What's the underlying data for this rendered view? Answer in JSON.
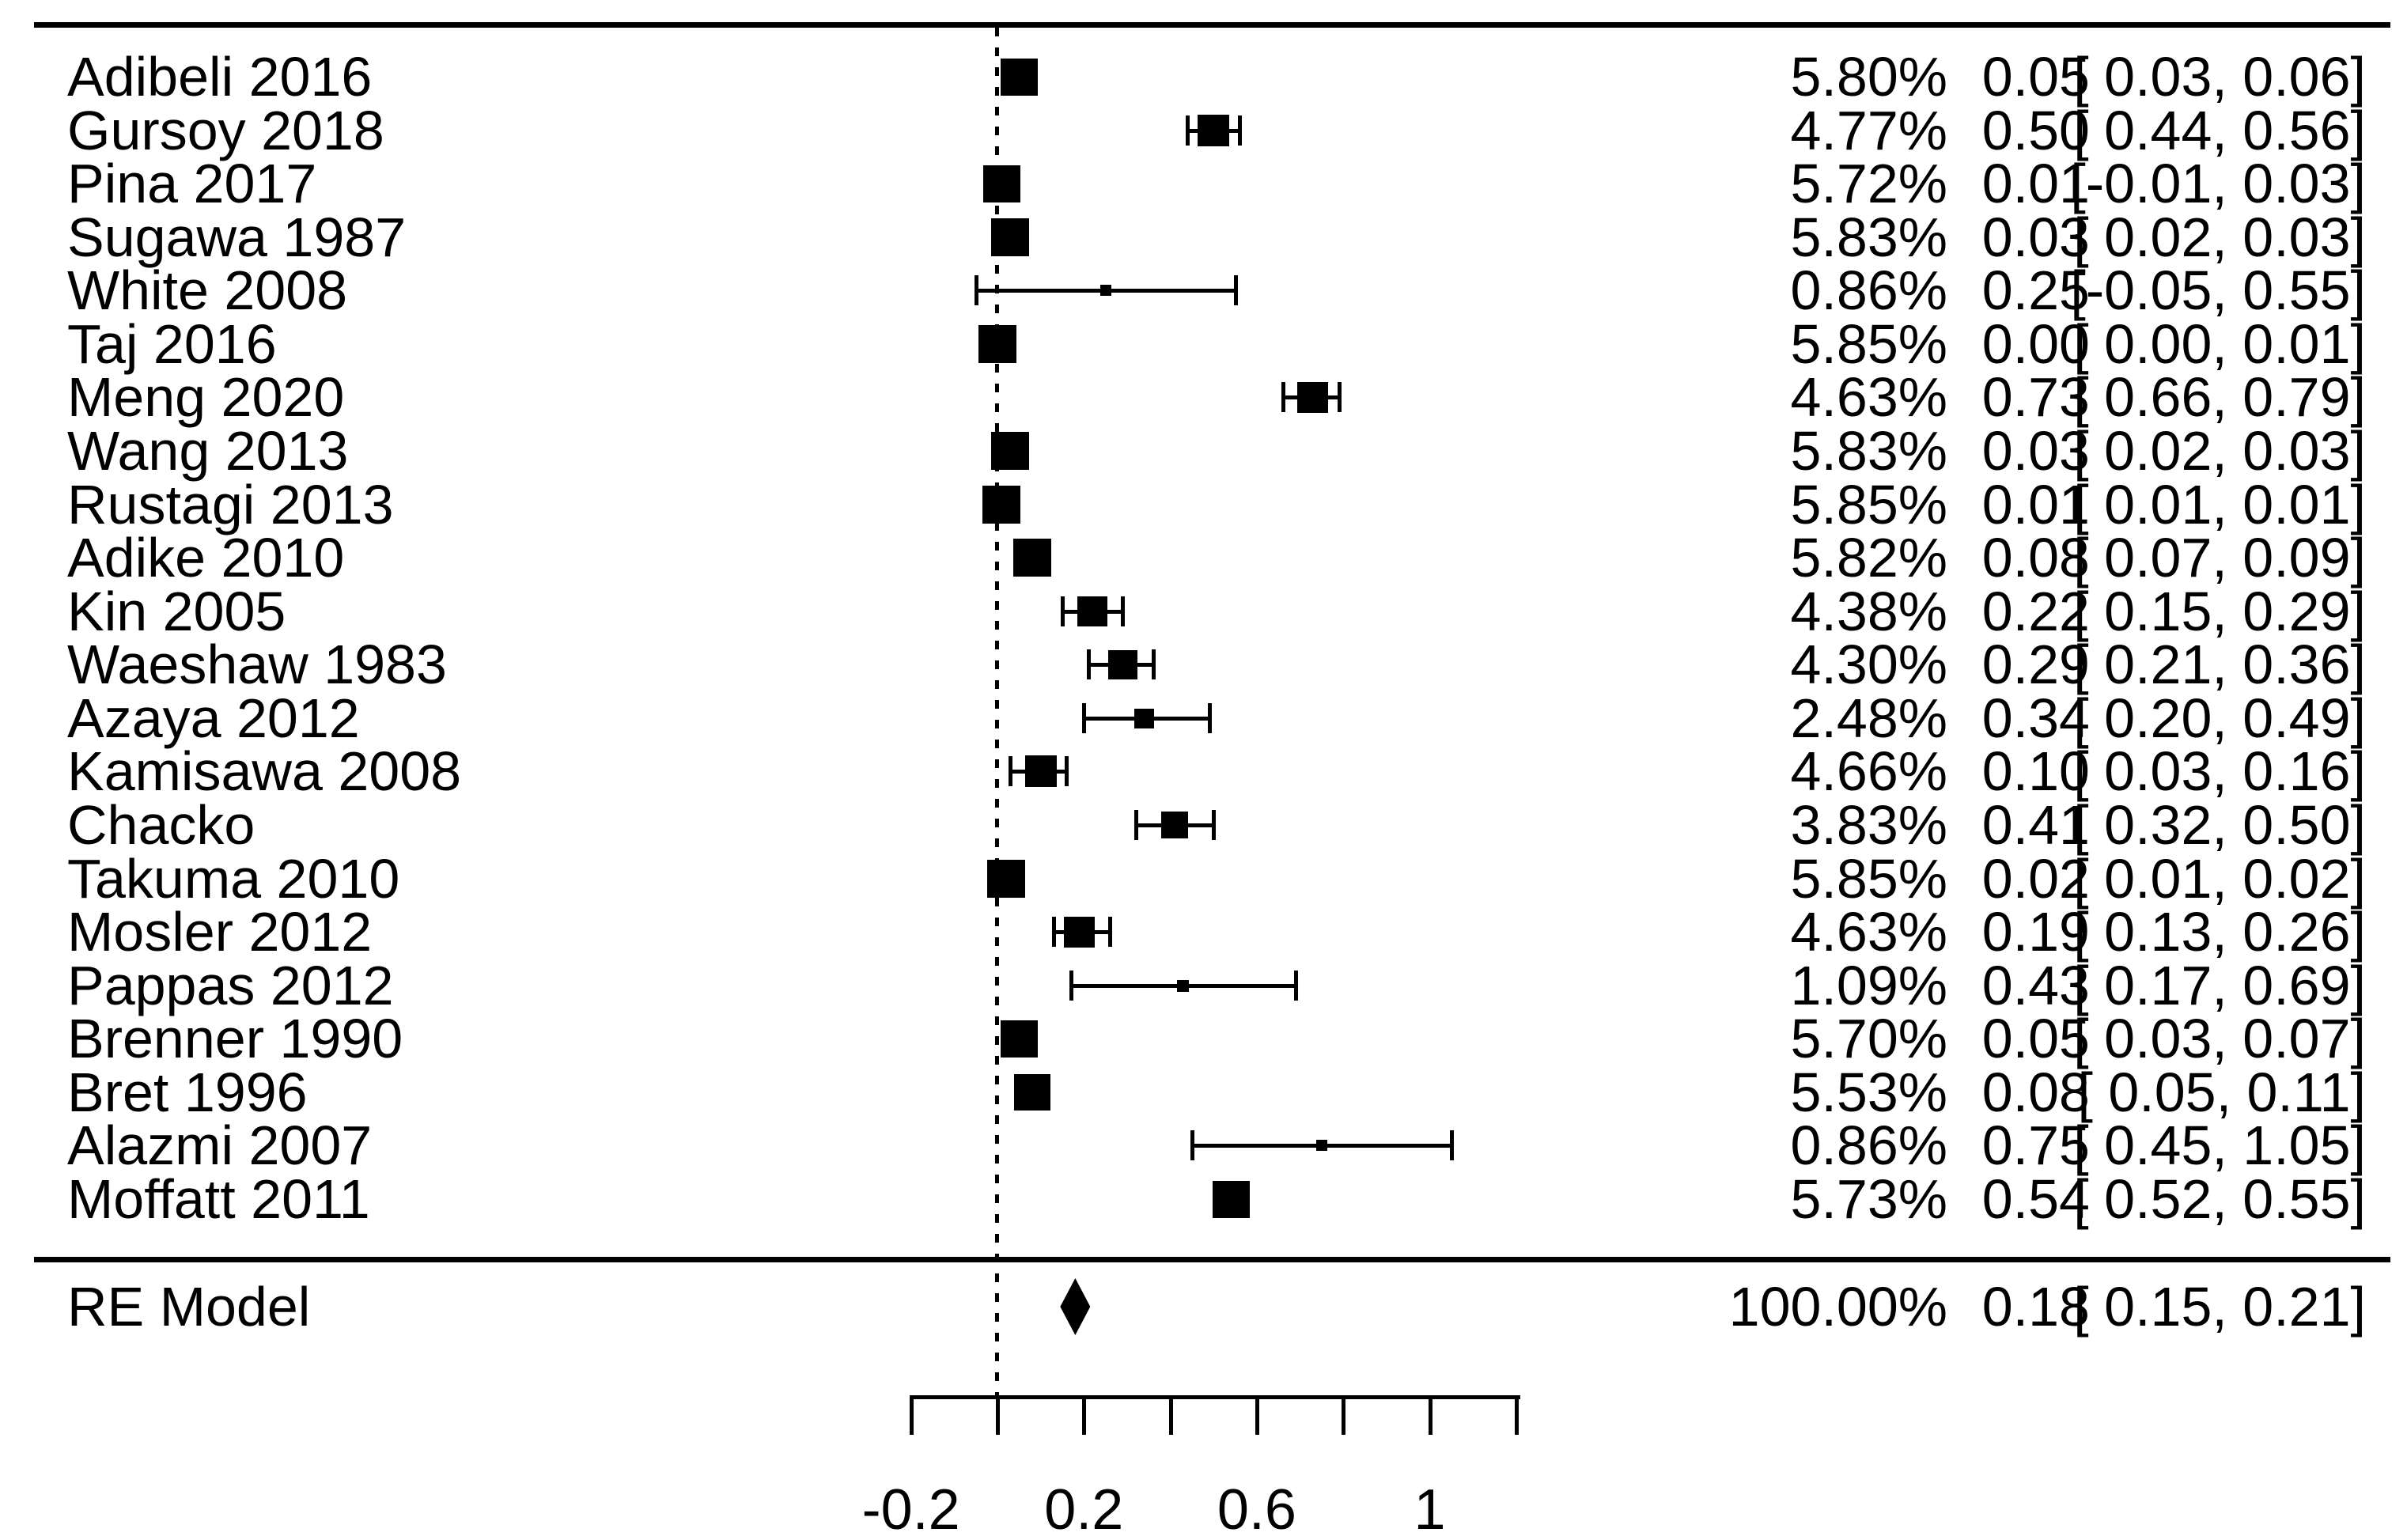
{
  "chart_data": {
    "type": "forest",
    "title": "",
    "x_axis": {
      "range": [
        -0.2,
        1.2
      ],
      "tick_values": [
        -0.2,
        0,
        0.2,
        0.4,
        0.6,
        0.8,
        1.0,
        1.2
      ],
      "labeled_ticks": [
        {
          "value": -0.2,
          "label": "-0.2"
        },
        {
          "value": 0.2,
          "label": "0.2"
        },
        {
          "value": 0.6,
          "label": "0.6"
        },
        {
          "value": 1,
          "label": "1"
        }
      ],
      "reference_line": 0
    },
    "studies": [
      {
        "label": "Adibeli 2016",
        "weight": 5.8,
        "weight_text": "5.80%",
        "estimate": 0.05,
        "estimate_text": "0.05",
        "ci_lo": 0.03,
        "ci_hi": 0.06,
        "ci_text": "[ 0.03, 0.06]"
      },
      {
        "label": "Gursoy 2018",
        "weight": 4.77,
        "weight_text": "4.77%",
        "estimate": 0.5,
        "estimate_text": "0.50",
        "ci_lo": 0.44,
        "ci_hi": 0.56,
        "ci_text": "[ 0.44, 0.56]"
      },
      {
        "label": "Pina 2017",
        "weight": 5.72,
        "weight_text": "5.72%",
        "estimate": 0.01,
        "estimate_text": "0.01",
        "ci_lo": -0.01,
        "ci_hi": 0.03,
        "ci_text": "[-0.01, 0.03]"
      },
      {
        "label": "Sugawa 1987",
        "weight": 5.83,
        "weight_text": "5.83%",
        "estimate": 0.03,
        "estimate_text": "0.03",
        "ci_lo": 0.02,
        "ci_hi": 0.03,
        "ci_text": "[ 0.02, 0.03]"
      },
      {
        "label": "White 2008",
        "weight": 0.86,
        "weight_text": "0.86%",
        "estimate": 0.25,
        "estimate_text": "0.25",
        "ci_lo": -0.05,
        "ci_hi": 0.55,
        "ci_text": "[-0.05, 0.55]"
      },
      {
        "label": "Taj 2016",
        "weight": 5.85,
        "weight_text": "5.85%",
        "estimate": 0.0,
        "estimate_text": "0.00",
        "ci_lo": 0.0,
        "ci_hi": 0.01,
        "ci_text": "[ 0.00, 0.01]"
      },
      {
        "label": "Meng 2020",
        "weight": 4.63,
        "weight_text": "4.63%",
        "estimate": 0.73,
        "estimate_text": "0.73",
        "ci_lo": 0.66,
        "ci_hi": 0.79,
        "ci_text": "[ 0.66, 0.79]"
      },
      {
        "label": "Wang 2013",
        "weight": 5.83,
        "weight_text": "5.83%",
        "estimate": 0.03,
        "estimate_text": "0.03",
        "ci_lo": 0.02,
        "ci_hi": 0.03,
        "ci_text": "[ 0.02, 0.03]"
      },
      {
        "label": "Rustagi 2013",
        "weight": 5.85,
        "weight_text": "5.85%",
        "estimate": 0.01,
        "estimate_text": "0.01",
        "ci_lo": 0.01,
        "ci_hi": 0.01,
        "ci_text": "[ 0.01, 0.01]"
      },
      {
        "label": "Adike 2010",
        "weight": 5.82,
        "weight_text": "5.82%",
        "estimate": 0.08,
        "estimate_text": "0.08",
        "ci_lo": 0.07,
        "ci_hi": 0.09,
        "ci_text": "[ 0.07, 0.09]"
      },
      {
        "label": "Kin 2005",
        "weight": 4.38,
        "weight_text": "4.38%",
        "estimate": 0.22,
        "estimate_text": "0.22",
        "ci_lo": 0.15,
        "ci_hi": 0.29,
        "ci_text": "[ 0.15, 0.29]"
      },
      {
        "label": "Waeshaw 1983",
        "weight": 4.3,
        "weight_text": "4.30%",
        "estimate": 0.29,
        "estimate_text": "0.29",
        "ci_lo": 0.21,
        "ci_hi": 0.36,
        "ci_text": "[ 0.21, 0.36]"
      },
      {
        "label": "Azaya 2012",
        "weight": 2.48,
        "weight_text": "2.48%",
        "estimate": 0.34,
        "estimate_text": "0.34",
        "ci_lo": 0.2,
        "ci_hi": 0.49,
        "ci_text": "[ 0.20, 0.49]"
      },
      {
        "label": "Kamisawa 2008",
        "weight": 4.66,
        "weight_text": "4.66%",
        "estimate": 0.1,
        "estimate_text": "0.10",
        "ci_lo": 0.03,
        "ci_hi": 0.16,
        "ci_text": "[ 0.03, 0.16]"
      },
      {
        "label": "Chacko",
        "weight": 3.83,
        "weight_text": "3.83%",
        "estimate": 0.41,
        "estimate_text": "0.41",
        "ci_lo": 0.32,
        "ci_hi": 0.5,
        "ci_text": "[ 0.32, 0.50]"
      },
      {
        "label": "Takuma 2010",
        "weight": 5.85,
        "weight_text": "5.85%",
        "estimate": 0.02,
        "estimate_text": "0.02",
        "ci_lo": 0.01,
        "ci_hi": 0.02,
        "ci_text": "[ 0.01, 0.02]"
      },
      {
        "label": "Mosler 2012",
        "weight": 4.63,
        "weight_text": "4.63%",
        "estimate": 0.19,
        "estimate_text": "0.19",
        "ci_lo": 0.13,
        "ci_hi": 0.26,
        "ci_text": "[ 0.13, 0.26]"
      },
      {
        "label": "Pappas 2012",
        "weight": 1.09,
        "weight_text": "1.09%",
        "estimate": 0.43,
        "estimate_text": "0.43",
        "ci_lo": 0.17,
        "ci_hi": 0.69,
        "ci_text": "[ 0.17, 0.69]"
      },
      {
        "label": "Brenner 1990",
        "weight": 5.7,
        "weight_text": "5.70%",
        "estimate": 0.05,
        "estimate_text": "0.05",
        "ci_lo": 0.03,
        "ci_hi": 0.07,
        "ci_text": "[ 0.03, 0.07]"
      },
      {
        "label": "Bret 1996",
        "weight": 5.53,
        "weight_text": "5.53%",
        "estimate": 0.08,
        "estimate_text": "0.08",
        "ci_lo": 0.05,
        "ci_hi": 0.11,
        "ci_text": "[ 0.05, 0.11]"
      },
      {
        "label": "Alazmi 2007",
        "weight": 0.86,
        "weight_text": "0.86%",
        "estimate": 0.75,
        "estimate_text": "0.75",
        "ci_lo": 0.45,
        "ci_hi": 1.05,
        "ci_text": "[ 0.45, 1.05]"
      },
      {
        "label": "Moffatt 2011",
        "weight": 5.73,
        "weight_text": "5.73%",
        "estimate": 0.54,
        "estimate_text": "0.54",
        "ci_lo": 0.52,
        "ci_hi": 0.55,
        "ci_text": "[ 0.52, 0.55]"
      }
    ],
    "summary": {
      "label": "RE Model",
      "weight": 100.0,
      "weight_text": "100.00%",
      "estimate": 0.18,
      "estimate_text": "0.18",
      "ci_lo": 0.15,
      "ci_hi": 0.21,
      "ci_text": "[ 0.15, 0.21]"
    }
  },
  "colors": {
    "foreground": "#000000",
    "background": "#ffffff"
  }
}
